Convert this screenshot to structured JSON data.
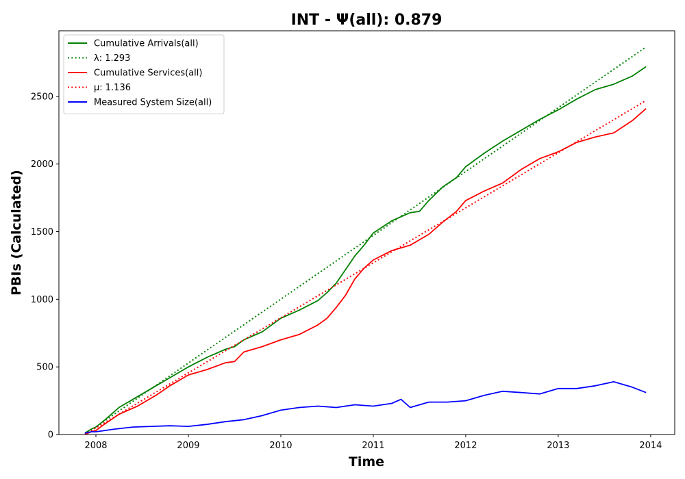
{
  "chart_data": {
    "type": "line",
    "title": "INT -  Ψ(all): 0.879",
    "xlabel": "Time",
    "ylabel": "PBIs (Calculated)",
    "xlim": [
      2007.6,
      2014.26
    ],
    "ylim": [
      0,
      2985
    ],
    "x_ticks": [
      2008,
      2009,
      2010,
      2011,
      2012,
      2013,
      2014
    ],
    "x_tick_labels": [
      "2008",
      "2009",
      "2010",
      "2011",
      "2012",
      "2013",
      "2014"
    ],
    "y_ticks": [
      0,
      500,
      1000,
      1500,
      2000,
      2500
    ],
    "y_tick_labels": [
      "0",
      "500",
      "1000",
      "1500",
      "2000",
      "2500"
    ],
    "grid": false,
    "legend_position": "upper-left",
    "series": [
      {
        "name": "Cumulative Arrivals(all)",
        "legend_label": "Cumulative Arrivals(all)",
        "color": "#008000",
        "style": "solid",
        "x": [
          2007.88,
          2007.95,
          2008.0,
          2008.1,
          2008.25,
          2008.45,
          2008.65,
          2008.8,
          2009.0,
          2009.2,
          2009.4,
          2009.5,
          2009.6,
          2009.8,
          2010.0,
          2010.2,
          2010.4,
          2010.5,
          2010.6,
          2010.7,
          2010.8,
          2010.9,
          2011.0,
          2011.2,
          2011.4,
          2011.5,
          2011.6,
          2011.75,
          2011.9,
          2012.0,
          2012.2,
          2012.4,
          2012.6,
          2012.8,
          2013.0,
          2013.2,
          2013.4,
          2013.6,
          2013.8,
          2013.95
        ],
        "y": [
          10,
          40,
          55,
          110,
          200,
          280,
          360,
          420,
          500,
          570,
          630,
          650,
          700,
          760,
          860,
          920,
          990,
          1050,
          1120,
          1220,
          1320,
          1400,
          1490,
          1580,
          1640,
          1650,
          1730,
          1830,
          1900,
          1980,
          2080,
          2170,
          2250,
          2330,
          2400,
          2480,
          2550,
          2590,
          2650,
          2720
        ]
      },
      {
        "name": "λ: 1.293",
        "legend_label": "λ: 1.293",
        "color": "#008000",
        "style": "dotted",
        "x": [
          2007.88,
          2013.95
        ],
        "y": [
          0,
          2865
        ]
      },
      {
        "name": "Cumulative Services(all)",
        "legend_label": "Cumulative Services(all)",
        "color": "#ff0000",
        "style": "solid",
        "x": [
          2007.88,
          2007.95,
          2008.0,
          2008.1,
          2008.25,
          2008.45,
          2008.65,
          2008.8,
          2009.0,
          2009.2,
          2009.4,
          2009.5,
          2009.6,
          2009.8,
          2010.0,
          2010.2,
          2010.4,
          2010.5,
          2010.6,
          2010.7,
          2010.8,
          2010.9,
          2011.0,
          2011.2,
          2011.4,
          2011.5,
          2011.6,
          2011.75,
          2011.9,
          2012.0,
          2012.2,
          2012.4,
          2012.6,
          2012.8,
          2013.0,
          2013.2,
          2013.4,
          2013.6,
          2013.8,
          2013.95
        ],
        "y": [
          0,
          20,
          30,
          80,
          150,
          210,
          290,
          360,
          440,
          480,
          530,
          540,
          610,
          650,
          700,
          740,
          810,
          860,
          940,
          1030,
          1150,
          1230,
          1290,
          1360,
          1400,
          1440,
          1480,
          1570,
          1650,
          1730,
          1800,
          1860,
          1960,
          2040,
          2090,
          2160,
          2200,
          2230,
          2320,
          2410
        ]
      },
      {
        "name": "μ: 1.136",
        "legend_label": "μ: 1.136",
        "color": "#ff0000",
        "style": "dotted",
        "x": [
          2007.88,
          2013.95
        ],
        "y": [
          0,
          2470
        ]
      },
      {
        "name": "Measured System Size(all)",
        "legend_label": "Measured System Size(all)",
        "color": "#0000ff",
        "style": "solid",
        "x": [
          2007.88,
          2007.95,
          2008.0,
          2008.2,
          2008.4,
          2008.6,
          2008.8,
          2009.0,
          2009.2,
          2009.4,
          2009.6,
          2009.8,
          2010.0,
          2010.2,
          2010.4,
          2010.6,
          2010.8,
          2011.0,
          2011.2,
          2011.3,
          2011.4,
          2011.6,
          2011.8,
          2012.0,
          2012.2,
          2012.4,
          2012.6,
          2012.8,
          2013.0,
          2013.2,
          2013.4,
          2013.6,
          2013.8,
          2013.95
        ],
        "y": [
          10,
          20,
          20,
          40,
          55,
          60,
          65,
          60,
          75,
          95,
          110,
          140,
          180,
          200,
          210,
          200,
          220,
          210,
          230,
          260,
          200,
          240,
          240,
          250,
          290,
          320,
          310,
          300,
          340,
          340,
          360,
          390,
          350,
          310
        ]
      }
    ]
  }
}
